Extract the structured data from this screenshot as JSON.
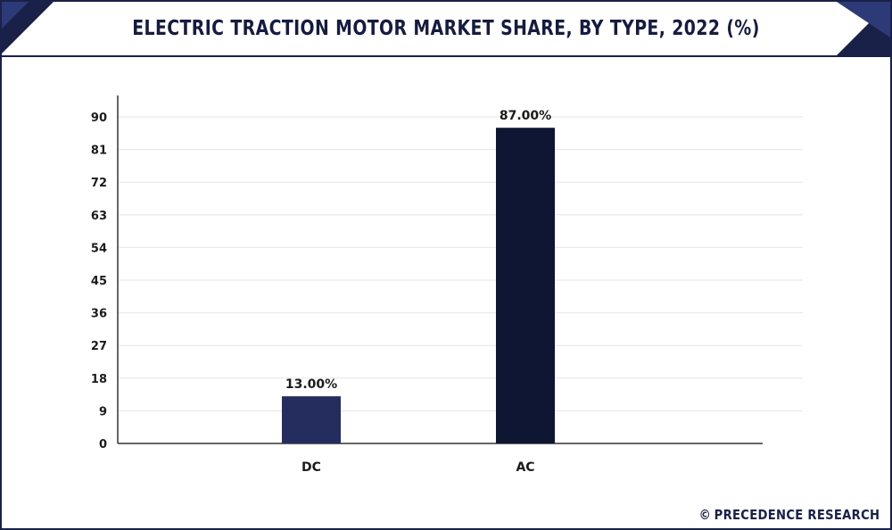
{
  "header": {
    "title": "ELECTRIC TRACTION MOTOR MARKET SHARE, BY TYPE, 2022 (%)"
  },
  "footer": {
    "copyright_symbol": "©",
    "brand": "PRECEDENCE RESEARCH"
  },
  "colors": {
    "frame": "#1a2148",
    "bar_dc": "#252d5e",
    "bar_ac": "#0f1634",
    "grid": "#e6e6e6",
    "axis": "#333333"
  },
  "chart_data": {
    "type": "bar",
    "categories": [
      "DC",
      "AC"
    ],
    "values": [
      13,
      87
    ],
    "data_labels": [
      "13.00%",
      "87.00%"
    ],
    "title": "ELECTRIC TRACTION MOTOR MARKET SHARE, BY TYPE, 2022 (%)",
    "xlabel": "",
    "ylabel": "",
    "ylim": [
      0,
      90
    ],
    "yticks": [
      "0",
      "9",
      "18",
      "27",
      "36",
      "45",
      "54",
      "63",
      "72",
      "81",
      "90"
    ],
    "grid": true,
    "legend": "none"
  }
}
